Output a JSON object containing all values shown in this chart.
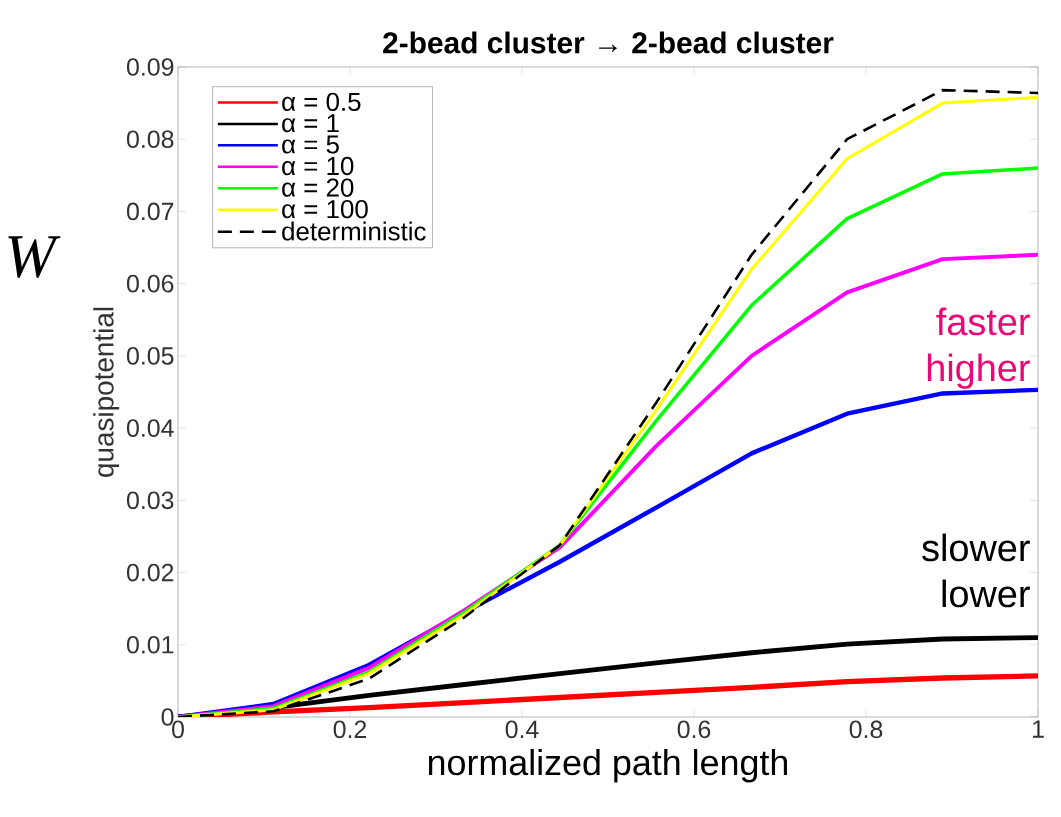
{
  "chart_data": {
    "type": "line",
    "title": "2-bead cluster → 2-bead cluster",
    "xlabel": "normalized path length",
    "ylabel": "quasipotential",
    "x": [
      0,
      0.111,
      0.222,
      0.333,
      0.444,
      0.556,
      0.667,
      0.778,
      0.889,
      1
    ],
    "series": [
      {
        "name": "α = 0.5",
        "color": "#ff0000",
        "values": [
          0,
          0.0007,
          0.0013,
          0.002,
          0.0027,
          0.0034,
          0.0041,
          0.0049,
          0.0054,
          0.0057
        ]
      },
      {
        "name": "α = 1",
        "color": "#000000",
        "values": [
          0,
          0.0013,
          0.003,
          0.0045,
          0.006,
          0.0075,
          0.0089,
          0.0101,
          0.0108,
          0.011
        ]
      },
      {
        "name": "α = 5",
        "color": "#0000ff",
        "values": [
          0,
          0.0018,
          0.0072,
          0.0145,
          0.0215,
          0.029,
          0.0365,
          0.042,
          0.0448,
          0.0453
        ]
      },
      {
        "name": "α = 10",
        "color": "#ff00ff",
        "values": [
          0,
          0.0015,
          0.0068,
          0.0148,
          0.0235,
          0.0375,
          0.05,
          0.0588,
          0.0634,
          0.064
        ]
      },
      {
        "name": "α = 20",
        "color": "#00ff00",
        "values": [
          0,
          0.0012,
          0.0062,
          0.0145,
          0.0238,
          0.041,
          0.057,
          0.069,
          0.0752,
          0.076
        ]
      },
      {
        "name": "α = 100",
        "color": "#ffff00",
        "values": [
          0,
          0.001,
          0.006,
          0.0142,
          0.0238,
          0.0425,
          0.062,
          0.0773,
          0.085,
          0.0858
        ]
      },
      {
        "name": "deterministic",
        "color": "#000000",
        "line_style": "dashed",
        "values": [
          0,
          0.0008,
          0.0053,
          0.0138,
          0.0238,
          0.0435,
          0.064,
          0.08,
          0.0868,
          0.0864
        ]
      }
    ],
    "xlim": [
      0,
      1
    ],
    "ylim": [
      0,
      0.09
    ],
    "xticks": [
      0,
      0.2,
      0.4,
      0.6,
      0.8,
      1
    ],
    "yticks": [
      0,
      0.01,
      0.02,
      0.03,
      0.04,
      0.05,
      0.06,
      0.07,
      0.08,
      0.09
    ],
    "legend": "top left",
    "grid": false,
    "annotations": [
      "W",
      "faster",
      "higher",
      "slower",
      "lower"
    ]
  }
}
